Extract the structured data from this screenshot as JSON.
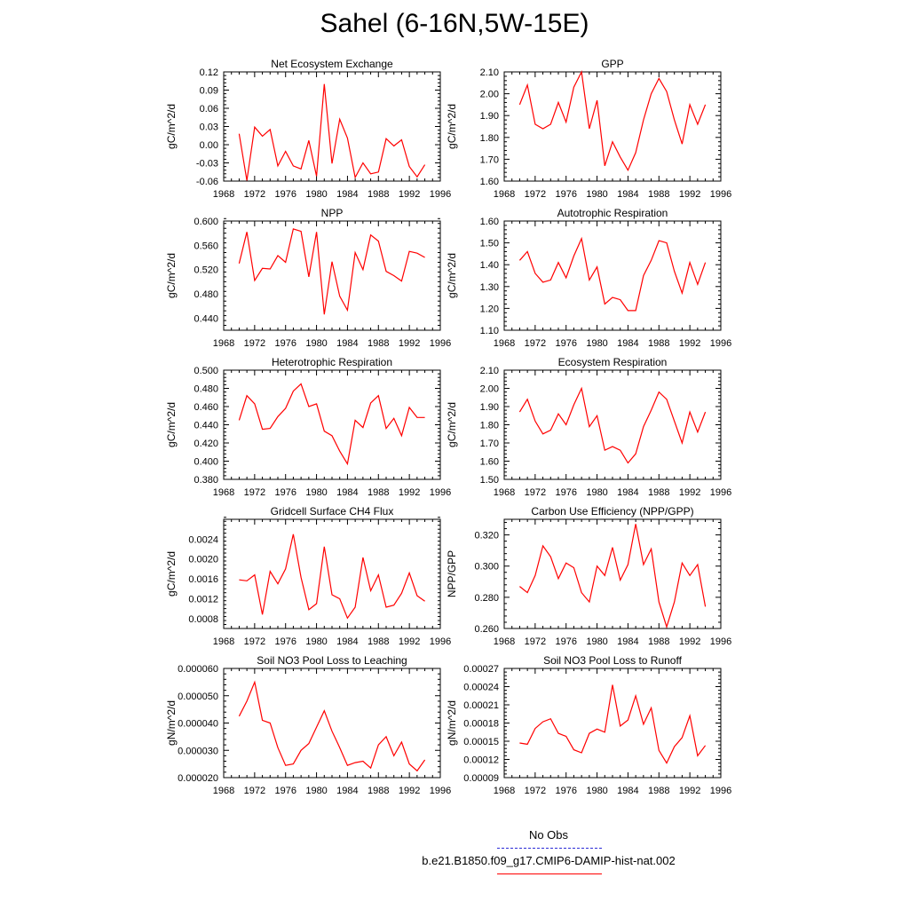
{
  "title": "Sahel (6-16N,5W-15E)",
  "line_color": "#ff0000",
  "obs_color": "#2b2bd6",
  "legend": {
    "obs_label": "No Obs",
    "model_label": "b.e21.B1850.f09_g17.CMIP6-DAMIP-hist-nat.002"
  },
  "chart_data": [
    {
      "type": "line",
      "title": "Net Ecosystem Exchange",
      "ylabel": "gC/m^2/d",
      "xlim": [
        1968,
        1996
      ],
      "xticks": [
        "1968",
        "1972",
        "1976",
        "1980",
        "1984",
        "1988",
        "1992",
        "1996"
      ],
      "ylim": [
        -0.06,
        0.12
      ],
      "yticks": [
        "-0.06",
        "-0.03",
        "0.00",
        "0.03",
        "0.06",
        "0.09",
        "0.12"
      ],
      "x": [
        1970,
        1971,
        1972,
        1973,
        1974,
        1975,
        1976,
        1977,
        1978,
        1979,
        1980,
        1981,
        1982,
        1983,
        1984,
        1985,
        1986,
        1987,
        1988,
        1989,
        1990,
        1991,
        1992,
        1993,
        1994
      ],
      "values": [
        0.018,
        -0.059,
        0.029,
        0.014,
        0.025,
        -0.035,
        -0.011,
        -0.035,
        -0.04,
        0.007,
        -0.052,
        0.1,
        -0.031,
        0.042,
        0.011,
        -0.054,
        -0.03,
        -0.048,
        -0.045,
        0.01,
        -0.002,
        0.008,
        -0.036,
        -0.053,
        -0.033
      ]
    },
    {
      "type": "line",
      "title": "GPP",
      "ylabel": "gC/m^2/d",
      "xlim": [
        1968,
        1996
      ],
      "xticks": [
        "1968",
        "1972",
        "1976",
        "1980",
        "1984",
        "1988",
        "1992",
        "1996"
      ],
      "ylim": [
        1.6,
        2.1
      ],
      "yticks": [
        "1.60",
        "1.70",
        "1.80",
        "1.90",
        "2.00",
        "2.10"
      ],
      "x": [
        1970,
        1971,
        1972,
        1973,
        1974,
        1975,
        1976,
        1977,
        1978,
        1979,
        1980,
        1981,
        1982,
        1983,
        1984,
        1985,
        1986,
        1987,
        1988,
        1989,
        1990,
        1991,
        1992,
        1993,
        1994
      ],
      "values": [
        1.95,
        2.04,
        1.86,
        1.84,
        1.86,
        1.96,
        1.87,
        2.03,
        2.1,
        1.84,
        1.97,
        1.67,
        1.78,
        1.71,
        1.65,
        1.73,
        1.88,
        2.0,
        2.07,
        2.01,
        1.88,
        1.77,
        1.95,
        1.86,
        1.95
      ]
    },
    {
      "type": "line",
      "title": "NPP",
      "ylabel": "gC/m^2/d",
      "xlim": [
        1968,
        1996
      ],
      "xticks": [
        "1968",
        "1972",
        "1976",
        "1980",
        "1984",
        "1988",
        "1992",
        "1996"
      ],
      "ylim": [
        0.42,
        0.6
      ],
      "yticks": [
        "0.440",
        "0.480",
        "0.520",
        "0.560",
        "0.600"
      ],
      "x": [
        1970,
        1971,
        1972,
        1973,
        1974,
        1975,
        1976,
        1977,
        1978,
        1979,
        1980,
        1981,
        1982,
        1983,
        1984,
        1985,
        1986,
        1987,
        1988,
        1989,
        1990,
        1991,
        1992,
        1993,
        1994
      ],
      "values": [
        0.53,
        0.582,
        0.502,
        0.522,
        0.521,
        0.543,
        0.532,
        0.587,
        0.583,
        0.508,
        0.582,
        0.446,
        0.533,
        0.476,
        0.453,
        0.548,
        0.52,
        0.577,
        0.567,
        0.517,
        0.51,
        0.501,
        0.55,
        0.547,
        0.54
      ]
    },
    {
      "type": "line",
      "title": "Autotrophic Respiration",
      "ylabel": "gC/m^2/d",
      "xlim": [
        1968,
        1996
      ],
      "xticks": [
        "1968",
        "1972",
        "1976",
        "1980",
        "1984",
        "1988",
        "1992",
        "1996"
      ],
      "ylim": [
        1.1,
        1.6
      ],
      "yticks": [
        "1.10",
        "1.20",
        "1.30",
        "1.40",
        "1.50",
        "1.60"
      ],
      "x": [
        1970,
        1971,
        1972,
        1973,
        1974,
        1975,
        1976,
        1977,
        1978,
        1979,
        1980,
        1981,
        1982,
        1983,
        1984,
        1985,
        1986,
        1987,
        1988,
        1989,
        1990,
        1991,
        1992,
        1993,
        1994
      ],
      "values": [
        1.42,
        1.46,
        1.36,
        1.32,
        1.33,
        1.41,
        1.34,
        1.44,
        1.52,
        1.33,
        1.39,
        1.22,
        1.25,
        1.24,
        1.19,
        1.19,
        1.35,
        1.42,
        1.51,
        1.5,
        1.37,
        1.27,
        1.41,
        1.31,
        1.41
      ]
    },
    {
      "type": "line",
      "title": "Heterotrophic Respiration",
      "ylabel": "gC/m^2/d",
      "xlim": [
        1968,
        1996
      ],
      "xticks": [
        "1968",
        "1972",
        "1976",
        "1980",
        "1984",
        "1988",
        "1992",
        "1996"
      ],
      "ylim": [
        0.38,
        0.5
      ],
      "yticks": [
        "0.380",
        "0.400",
        "0.420",
        "0.440",
        "0.460",
        "0.480",
        "0.500"
      ],
      "x": [
        1970,
        1971,
        1972,
        1973,
        1974,
        1975,
        1976,
        1977,
        1978,
        1979,
        1980,
        1981,
        1982,
        1983,
        1984,
        1985,
        1986,
        1987,
        1988,
        1989,
        1990,
        1991,
        1992,
        1993,
        1994
      ],
      "values": [
        0.445,
        0.472,
        0.463,
        0.435,
        0.436,
        0.449,
        0.458,
        0.477,
        0.485,
        0.46,
        0.463,
        0.433,
        0.428,
        0.411,
        0.397,
        0.445,
        0.437,
        0.464,
        0.472,
        0.436,
        0.447,
        0.428,
        0.459,
        0.448,
        0.448
      ]
    },
    {
      "type": "line",
      "title": "Ecosystem Respiration",
      "ylabel": "gC/m^2/d",
      "xlim": [
        1968,
        1996
      ],
      "xticks": [
        "1968",
        "1972",
        "1976",
        "1980",
        "1984",
        "1988",
        "1992",
        "1996"
      ],
      "ylim": [
        1.5,
        2.1
      ],
      "yticks": [
        "1.50",
        "1.60",
        "1.70",
        "1.80",
        "1.90",
        "2.00",
        "2.10"
      ],
      "x": [
        1970,
        1971,
        1972,
        1973,
        1974,
        1975,
        1976,
        1977,
        1978,
        1979,
        1980,
        1981,
        1982,
        1983,
        1984,
        1985,
        1986,
        1987,
        1988,
        1989,
        1990,
        1991,
        1992,
        1993,
        1994
      ],
      "values": [
        1.87,
        1.94,
        1.82,
        1.75,
        1.77,
        1.86,
        1.8,
        1.91,
        2.0,
        1.79,
        1.85,
        1.66,
        1.68,
        1.66,
        1.59,
        1.64,
        1.79,
        1.88,
        1.98,
        1.94,
        1.82,
        1.7,
        1.87,
        1.76,
        1.87
      ]
    },
    {
      "type": "line",
      "title": "Gridcell Surface CH4 Flux",
      "ylabel": "gC/m^2/d",
      "xlim": [
        1968,
        1996
      ],
      "xticks": [
        "1968",
        "1972",
        "1976",
        "1980",
        "1984",
        "1988",
        "1992",
        "1996"
      ],
      "ylim": [
        0.0006,
        0.0028
      ],
      "yticks": [
        "0.0008",
        "0.0012",
        "0.0016",
        "0.0020",
        "0.0024"
      ],
      "x": [
        1970,
        1971,
        1972,
        1973,
        1974,
        1975,
        1976,
        1977,
        1978,
        1979,
        1980,
        1981,
        1982,
        1983,
        1984,
        1985,
        1986,
        1987,
        1988,
        1989,
        1990,
        1991,
        1992,
        1993,
        1994
      ],
      "values": [
        0.00158,
        0.00156,
        0.00168,
        0.00088,
        0.00175,
        0.0015,
        0.0018,
        0.0025,
        0.00163,
        0.00098,
        0.0011,
        0.00225,
        0.00128,
        0.0012,
        0.00081,
        0.00103,
        0.00203,
        0.00136,
        0.00168,
        0.00103,
        0.00107,
        0.00131,
        0.00172,
        0.00126,
        0.00115
      ]
    },
    {
      "type": "line",
      "title": "Carbon Use Efficiency (NPP/GPP)",
      "ylabel": "NPP/GPP",
      "xlim": [
        1968,
        1996
      ],
      "xticks": [
        "1968",
        "1972",
        "1976",
        "1980",
        "1984",
        "1988",
        "1992",
        "1996"
      ],
      "ylim": [
        0.26,
        0.33
      ],
      "yticks": [
        "0.260",
        "0.280",
        "0.300",
        "0.320"
      ],
      "x": [
        1970,
        1971,
        1972,
        1973,
        1974,
        1975,
        1976,
        1977,
        1978,
        1979,
        1980,
        1981,
        1982,
        1983,
        1984,
        1985,
        1986,
        1987,
        1988,
        1989,
        1990,
        1991,
        1992,
        1993,
        1994
      ],
      "values": [
        0.287,
        0.283,
        0.294,
        0.313,
        0.306,
        0.292,
        0.302,
        0.299,
        0.283,
        0.277,
        0.3,
        0.294,
        0.312,
        0.291,
        0.301,
        0.327,
        0.301,
        0.311,
        0.277,
        0.261,
        0.277,
        0.302,
        0.294,
        0.301,
        0.274
      ]
    },
    {
      "type": "line",
      "title": "Soil NO3 Pool Loss to Leaching",
      "ylabel": "gN/m^2/d",
      "xlim": [
        1968,
        1996
      ],
      "xticks": [
        "1968",
        "1972",
        "1976",
        "1980",
        "1984",
        "1988",
        "1992",
        "1996"
      ],
      "ylim": [
        2e-05,
        6e-05
      ],
      "yticks": [
        "0.000020",
        "0.000030",
        "0.000040",
        "0.000050",
        "0.000060"
      ],
      "x": [
        1970,
        1971,
        1972,
        1973,
        1974,
        1975,
        1976,
        1977,
        1978,
        1979,
        1980,
        1981,
        1982,
        1983,
        1984,
        1985,
        1986,
        1987,
        1988,
        1989,
        1990,
        1991,
        1992,
        1993,
        1994
      ],
      "values": [
        4.25e-05,
        4.8e-05,
        5.5e-05,
        4.1e-05,
        4e-05,
        3.1e-05,
        2.45e-05,
        2.5e-05,
        3e-05,
        3.25e-05,
        3.85e-05,
        4.45e-05,
        3.7e-05,
        3.1e-05,
        2.45e-05,
        2.55e-05,
        2.6e-05,
        2.35e-05,
        3.2e-05,
        3.5e-05,
        2.8e-05,
        3.3e-05,
        2.5e-05,
        2.25e-05,
        2.65e-05
      ]
    },
    {
      "type": "line",
      "title": "Soil NO3 Pool Loss to Runoff",
      "ylabel": "gN/m^2/d",
      "xlim": [
        1968,
        1996
      ],
      "xticks": [
        "1968",
        "1972",
        "1976",
        "1980",
        "1984",
        "1988",
        "1992",
        "1996"
      ],
      "ylim": [
        9e-05,
        0.00027
      ],
      "yticks": [
        "0.00009",
        "0.00012",
        "0.00015",
        "0.00018",
        "0.00021",
        "0.00024",
        "0.00027"
      ],
      "x": [
        1970,
        1971,
        1972,
        1973,
        1974,
        1975,
        1976,
        1977,
        1978,
        1979,
        1980,
        1981,
        1982,
        1983,
        1984,
        1985,
        1986,
        1987,
        1988,
        1989,
        1990,
        1991,
        1992,
        1993,
        1994
      ],
      "values": [
        0.000147,
        0.000145,
        0.000171,
        0.000182,
        0.000187,
        0.000163,
        0.000158,
        0.000136,
        0.000131,
        0.000163,
        0.00017,
        0.000165,
        0.000243,
        0.000175,
        0.000185,
        0.000225,
        0.000178,
        0.000205,
        0.000135,
        0.000114,
        0.000141,
        0.000156,
        0.000192,
        0.000126,
        0.000143
      ]
    }
  ]
}
